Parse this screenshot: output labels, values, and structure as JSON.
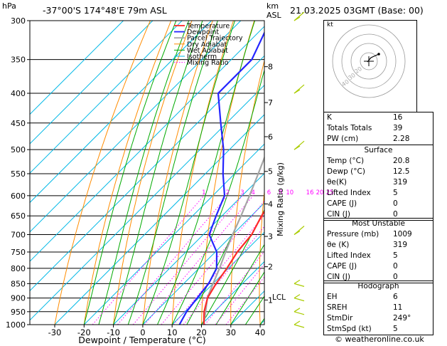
{
  "header": {
    "hpa_label": "hPa",
    "location": "-37°00'S  174°48'E  79m  ASL",
    "km_label": "km",
    "asl_label": "ASL",
    "datetime": "21.03.2025  03GMT  (Base: 00)"
  },
  "chart_data": {
    "type": "line",
    "title": "-37°00'S  174°48'E  79m  ASL",
    "xlabel": "Dewpoint / Temperature (°C)",
    "ylabel": "Mixing Ratio (g/kg)",
    "x_ticks": [
      "-30",
      "-20",
      "-10",
      "0",
      "10",
      "20",
      "30",
      "40"
    ],
    "xlim": [
      -35,
      40
    ],
    "pressure_levels": [
      "300",
      "350",
      "400",
      "450",
      "500",
      "550",
      "600",
      "650",
      "700",
      "750",
      "800",
      "850",
      "900",
      "950",
      "1000"
    ],
    "plim": [
      300,
      1000
    ],
    "km_ticks": [
      {
        "km": "1",
        "p": 907
      },
      {
        "km": "2",
        "p": 795
      },
      {
        "km": "3",
        "p": 705
      },
      {
        "km": "4",
        "p": 620
      },
      {
        "km": "5",
        "p": 545
      },
      {
        "km": "6",
        "p": 475
      },
      {
        "km": "7",
        "p": 415
      },
      {
        "km": "8",
        "p": 360
      }
    ],
    "lcl": {
      "label": "LCL",
      "p": 898
    },
    "mixing_ratio_labels": [
      "1",
      "2",
      "3",
      "4",
      "6",
      "8",
      "10",
      "16",
      "20",
      "25"
    ],
    "legend": [
      "Temperature",
      "Dewpoint",
      "Parcel Trajectory",
      "Dry Adiabat",
      "Wet Adiabat",
      "Isotherm",
      "Mixing Ratio"
    ],
    "colors": {
      "temperature": "#ff2a2a",
      "dewpoint": "#2424ff",
      "parcel": "#a6a6a6",
      "dry_adiabat": "#ff8c00",
      "wet_adiabat": "#00aa00",
      "isotherm": "#00b8e6",
      "mixing_ratio": "#ff00ff"
    },
    "series": [
      {
        "name": "Temperature",
        "points": [
          [
            1000,
            20.8
          ],
          [
            950,
            16.5
          ],
          [
            900,
            13.0
          ],
          [
            850,
            11.0
          ],
          [
            800,
            9.5
          ],
          [
            750,
            7.5
          ],
          [
            700,
            6.5
          ],
          [
            650,
            3.5
          ],
          [
            600,
            1.0
          ],
          [
            550,
            -3.5
          ],
          [
            500,
            -8.5
          ],
          [
            450,
            -14.5
          ],
          [
            400,
            -21.0
          ],
          [
            350,
            -29.0
          ],
          [
            300,
            -38.0
          ]
        ]
      },
      {
        "name": "Dewpoint",
        "points": [
          [
            1000,
            12.5
          ],
          [
            950,
            10.5
          ],
          [
            900,
            9.5
          ],
          [
            850,
            8.5
          ],
          [
            800,
            6.0
          ],
          [
            750,
            0.5
          ],
          [
            700,
            -8.0
          ],
          [
            650,
            -12.0
          ],
          [
            600,
            -16.0
          ],
          [
            550,
            -24.0
          ],
          [
            500,
            -32.0
          ],
          [
            450,
            -42.0
          ],
          [
            400,
            -53.0
          ],
          [
            350,
            -53.0
          ],
          [
            300,
            -60.0
          ]
        ]
      },
      {
        "name": "Parcel Trajectory",
        "points": [
          [
            1000,
            20.8
          ],
          [
            950,
            17.0
          ],
          [
            898,
            12.8
          ],
          [
            850,
            10.0
          ],
          [
            800,
            7.0
          ],
          [
            750,
            3.5
          ],
          [
            700,
            0.0
          ],
          [
            650,
            -3.5
          ],
          [
            600,
            -7.5
          ],
          [
            550,
            -12.0
          ],
          [
            500,
            -17.0
          ],
          [
            450,
            -22.5
          ],
          [
            400,
            -29.0
          ],
          [
            350,
            -36.5
          ],
          [
            300,
            -45.0
          ]
        ]
      }
    ],
    "wind_barbs": [
      {
        "p": 1000
      },
      {
        "p": 950
      },
      {
        "p": 900
      },
      {
        "p": 850
      },
      {
        "p": 700
      },
      {
        "p": 500
      },
      {
        "p": 400
      },
      {
        "p": 300
      }
    ]
  },
  "hodograph": {
    "label": "kt",
    "ring_labels": [
      "20",
      "30",
      "40"
    ]
  },
  "indices": [
    {
      "k": "K",
      "v": "16"
    },
    {
      "k": "Totals Totals",
      "v": "39"
    },
    {
      "k": "PW (cm)",
      "v": "2.28"
    }
  ],
  "surface": {
    "title": "Surface",
    "rows": [
      {
        "k": "Temp (°C)",
        "v": "20.8"
      },
      {
        "k": "Dewp (°C)",
        "v": "12.5"
      },
      {
        "k": "θe(K)",
        "v": "319"
      },
      {
        "k": "Lifted Index",
        "v": "5"
      },
      {
        "k": "CAPE (J)",
        "v": "0"
      },
      {
        "k": "CIN (J)",
        "v": "0"
      }
    ]
  },
  "most_unstable": {
    "title": "Most Unstable",
    "rows": [
      {
        "k": "Pressure (mb)",
        "v": "1009"
      },
      {
        "k": "θe (K)",
        "v": "319"
      },
      {
        "k": "Lifted Index",
        "v": "5"
      },
      {
        "k": "CAPE (J)",
        "v": "0"
      },
      {
        "k": "CIN (J)",
        "v": "0"
      }
    ]
  },
  "hodograph_table": {
    "title": "Hodograph",
    "rows": [
      {
        "k": "EH",
        "v": "6"
      },
      {
        "k": "SREH",
        "v": "11"
      },
      {
        "k": "StmDir",
        "v": "249°"
      },
      {
        "k": "StmSpd (kt)",
        "v": "5"
      }
    ]
  },
  "footer": "© weatheronline.co.uk"
}
